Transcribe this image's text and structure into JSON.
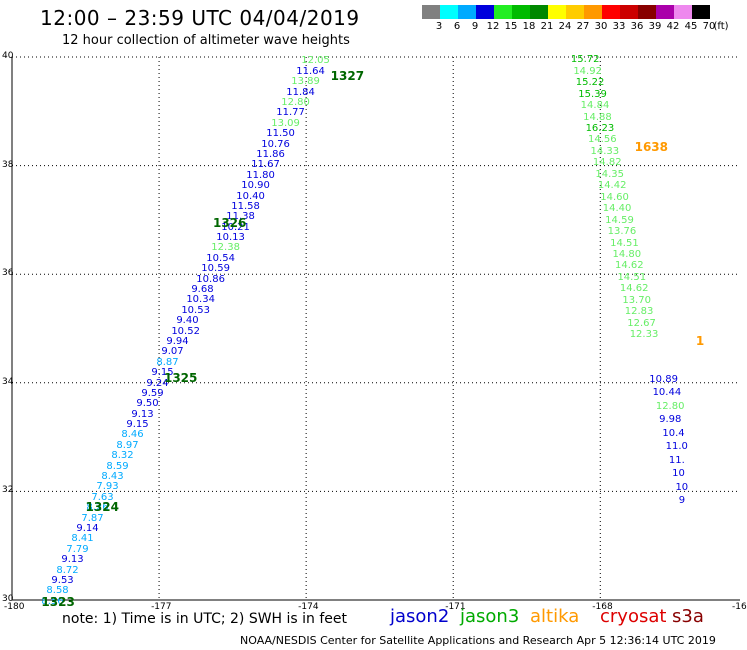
{
  "title": "12:00 – 23:59 UTC 04/04/2019",
  "subtitle": "12 hour collection of altimeter wave heights",
  "color_scale": {
    "unit": "(ft)",
    "bins": [
      {
        "label": "3",
        "color": "#808080"
      },
      {
        "label": "6",
        "color": "#00ffff"
      },
      {
        "label": "9",
        "color": "#00aaff"
      },
      {
        "label": "12",
        "color": "#0000dd"
      },
      {
        "label": "15",
        "color": "#22ee22"
      },
      {
        "label": "18",
        "color": "#00bb00"
      },
      {
        "label": "21",
        "color": "#008800"
      },
      {
        "label": "24",
        "color": "#ffff00"
      },
      {
        "label": "27",
        "color": "#ffcc00"
      },
      {
        "label": "30",
        "color": "#ff9900"
      },
      {
        "label": "33",
        "color": "#ff0000"
      },
      {
        "label": "36",
        "color": "#cc0000"
      },
      {
        "label": "39",
        "color": "#880000"
      },
      {
        "label": "42",
        "color": "#aa00aa"
      },
      {
        "label": "45",
        "color": "#ee88ee"
      },
      {
        "label": "70",
        "color": "#000000"
      }
    ]
  },
  "map": {
    "lon_ticks": [
      "-180",
      "-177",
      "-174",
      "-171",
      "-168",
      "-16"
    ],
    "lat_ticks": [
      "40",
      "38",
      "36",
      "34",
      "32",
      "30"
    ]
  },
  "tracks": [
    {
      "name": "pass-1323-1327",
      "start": {
        "lon": -179.4,
        "lat": 29.95
      },
      "end": {
        "lon": -174.1,
        "lat": 39.9
      },
      "labels": [
        {
          "id": "1323",
          "lon": -179.4,
          "lat": 29.95,
          "color": "#006600"
        },
        {
          "id": "1324",
          "lon": -178.5,
          "lat": 31.7,
          "color": "#006600"
        },
        {
          "id": "1325",
          "lon": -176.9,
          "lat": 34.07,
          "color": "#006600"
        },
        {
          "id": "1326",
          "lon": -175.9,
          "lat": 36.92,
          "color": "#006600"
        },
        {
          "id": "1327",
          "lon": -173.5,
          "lat": 39.63,
          "color": "#006600"
        }
      ],
      "values": [
        {
          "v": "8.56",
          "c": "#00aaff"
        },
        {
          "v": "8.58",
          "c": "#00aaff"
        },
        {
          "v": "9.53",
          "c": "#0000dd"
        },
        {
          "v": "8.72",
          "c": "#00aaff"
        },
        {
          "v": "9.13",
          "c": "#0000dd"
        },
        {
          "v": "7.79",
          "c": "#00aaff"
        },
        {
          "v": "8.41",
          "c": "#00aaff"
        },
        {
          "v": "9.14",
          "c": "#0000dd"
        },
        {
          "v": "7.87",
          "c": "#00aaff"
        },
        {
          "v": "8.26",
          "c": "#00aaff"
        },
        {
          "v": "7.63",
          "c": "#00aaff"
        },
        {
          "v": "7.93",
          "c": "#00aaff"
        },
        {
          "v": "8.43",
          "c": "#00aaff"
        },
        {
          "v": "8.59",
          "c": "#00aaff"
        },
        {
          "v": "8.32",
          "c": "#00aaff"
        },
        {
          "v": "8.97",
          "c": "#00aaff"
        },
        {
          "v": "8.46",
          "c": "#00aaff"
        },
        {
          "v": "9.15",
          "c": "#0000dd"
        },
        {
          "v": "9.13",
          "c": "#0000dd"
        },
        {
          "v": "9.50",
          "c": "#0000dd"
        },
        {
          "v": "9.59",
          "c": "#0000dd"
        },
        {
          "v": "9.24",
          "c": "#0000dd"
        },
        {
          "v": "9.15",
          "c": "#0000dd"
        },
        {
          "v": "8.87",
          "c": "#00aaff"
        },
        {
          "v": "9.07",
          "c": "#0000dd"
        },
        {
          "v": "9.94",
          "c": "#0000dd"
        },
        {
          "v": "10.52",
          "c": "#0000dd"
        },
        {
          "v": "9.40",
          "c": "#0000dd"
        },
        {
          "v": "10.53",
          "c": "#0000dd"
        },
        {
          "v": "10.34",
          "c": "#0000dd"
        },
        {
          "v": "9.68",
          "c": "#0000dd"
        },
        {
          "v": "10.86",
          "c": "#0000dd"
        },
        {
          "v": "10.59",
          "c": "#0000dd"
        },
        {
          "v": "10.54",
          "c": "#0000dd"
        },
        {
          "v": "12.38",
          "c": "#66ee66"
        },
        {
          "v": "10.13",
          "c": "#0000dd"
        },
        {
          "v": "10.21",
          "c": "#0000dd"
        },
        {
          "v": "11.38",
          "c": "#0000dd"
        },
        {
          "v": "11.58",
          "c": "#0000dd"
        },
        {
          "v": "10.40",
          "c": "#0000dd"
        },
        {
          "v": "10.90",
          "c": "#0000dd"
        },
        {
          "v": "11.80",
          "c": "#0000dd"
        },
        {
          "v": "11.67",
          "c": "#0000dd"
        },
        {
          "v": "11.86",
          "c": "#0000dd"
        },
        {
          "v": "10.76",
          "c": "#0000dd"
        },
        {
          "v": "11.50",
          "c": "#0000dd"
        },
        {
          "v": "13.09",
          "c": "#66ee66"
        },
        {
          "v": "11.77",
          "c": "#0000dd"
        },
        {
          "v": "12.80",
          "c": "#66ee66"
        },
        {
          "v": "11.84",
          "c": "#0000dd"
        },
        {
          "v": "13.89",
          "c": "#66ee66"
        },
        {
          "v": "11.64",
          "c": "#0000dd"
        },
        {
          "v": "12.05",
          "c": "#66ee66"
        }
      ]
    },
    {
      "name": "pass-1638",
      "start": {
        "lon": -168.6,
        "lat": 39.92
      },
      "end": {
        "lon": -167.4,
        "lat": 34.86
      },
      "labels": [
        {
          "id": "1638",
          "lon": -167.3,
          "lat": 38.32,
          "color": "#ff9900"
        }
      ],
      "values": [
        {
          "v": "15.72",
          "c": "#00bb00"
        },
        {
          "v": "14.92",
          "c": "#66ee66"
        },
        {
          "v": "15.22",
          "c": "#00bb00"
        },
        {
          "v": "15.39",
          "c": "#00bb00"
        },
        {
          "v": "14.84",
          "c": "#66ee66"
        },
        {
          "v": "14.88",
          "c": "#66ee66"
        },
        {
          "v": "16.23",
          "c": "#00bb00"
        },
        {
          "v": "14.56",
          "c": "#66ee66"
        },
        {
          "v": "14.33",
          "c": "#66ee66"
        },
        {
          "v": "14.82",
          "c": "#66ee66"
        },
        {
          "v": "14.35",
          "c": "#66ee66"
        },
        {
          "v": "14.42",
          "c": "#66ee66"
        },
        {
          "v": "14.60",
          "c": "#66ee66"
        },
        {
          "v": "14.40",
          "c": "#66ee66"
        },
        {
          "v": "14.59",
          "c": "#66ee66"
        },
        {
          "v": "13.76",
          "c": "#66ee66"
        },
        {
          "v": "14.51",
          "c": "#66ee66"
        },
        {
          "v": "14.80",
          "c": "#66ee66"
        },
        {
          "v": "14.62",
          "c": "#66ee66"
        },
        {
          "v": "14.51",
          "c": "#66ee66"
        },
        {
          "v": "14.62",
          "c": "#66ee66"
        },
        {
          "v": "13.70",
          "c": "#66ee66"
        },
        {
          "v": "12.83",
          "c": "#66ee66"
        },
        {
          "v": "12.67",
          "c": "#66ee66"
        },
        {
          "v": "12.33",
          "c": "#66ee66"
        }
      ]
    },
    {
      "name": "pass-edge",
      "start": {
        "lon": -167.0,
        "lat": 34.04
      },
      "end": {
        "lon": -166.4,
        "lat": 31.8
      },
      "labels": [
        {
          "id": "1",
          "lon": -166.05,
          "lat": 34.75,
          "color": "#ff9900"
        }
      ],
      "values": [
        {
          "v": "10.89",
          "c": "#0000dd"
        },
        {
          "v": "10.44",
          "c": "#0000dd"
        },
        {
          "v": "12.80",
          "c": "#66ee66"
        },
        {
          "v": "9.98",
          "c": "#0000dd"
        },
        {
          "v": "10.4",
          "c": "#0000dd"
        },
        {
          "v": "11.0",
          "c": "#0000dd"
        },
        {
          "v": "11.",
          "c": "#0000dd"
        },
        {
          "v": "10",
          "c": "#0000dd"
        },
        {
          "v": "10",
          "c": "#0000dd"
        },
        {
          "v": "9",
          "c": "#0000dd"
        }
      ]
    }
  ],
  "note": "note:  1) Time is in UTC; 2) SWH is in feet",
  "satellites": [
    {
      "name": "jason2",
      "color": "#0000cc"
    },
    {
      "name": "jason3",
      "color": "#00aa00"
    },
    {
      "name": "altika",
      "color": "#ff9900"
    },
    {
      "name": "cryosat",
      "color": "#dd0000"
    },
    {
      "name": "s3a",
      "color": "#880000"
    }
  ],
  "footer": "NOAA/NESDIS Center for Satellite Applications and Research    Apr  5 12:36:14 UTC 2019"
}
